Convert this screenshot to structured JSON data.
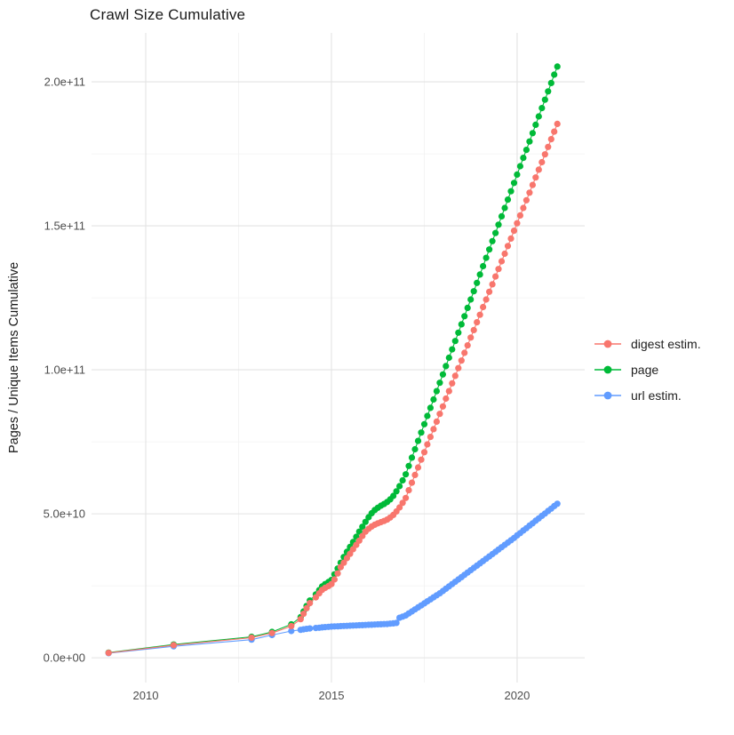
{
  "chart_data": {
    "type": "line",
    "title": "Crawl Size Cumulative",
    "xlabel": "",
    "ylabel": "Pages / Unique Items Cumulative",
    "legend_position": "right",
    "grid": true,
    "value_unit": "billions (1e9 items); axis labels shown in scientific notation",
    "x_axis": {
      "ticks": [
        {
          "label": "2010",
          "value": 2010
        },
        {
          "label": "2015",
          "value": 2015
        },
        {
          "label": "2020",
          "value": 2020
        }
      ],
      "minor_ticks": [
        2012.5,
        2017.5
      ],
      "domain": [
        2008.54,
        2021.82
      ]
    },
    "y_axis": {
      "ticks": [
        {
          "label": "0.0e+00",
          "value": 0
        },
        {
          "label": "5.0e+10",
          "value": 50
        },
        {
          "label": "1.0e+11",
          "value": 100
        },
        {
          "label": "1.5e+11",
          "value": 150
        },
        {
          "label": "2.0e+11",
          "value": 200
        }
      ],
      "minor_ticks": [
        25,
        75,
        125,
        175
      ],
      "domain": [
        -8.6,
        217.0
      ]
    },
    "x": [
      2009.0,
      2010.75,
      2012.85,
      2013.4,
      2013.92,
      2014.17,
      2014.25,
      2014.33,
      2014.42,
      2014.58,
      2014.67,
      2014.75,
      2014.83,
      2014.92,
      2015.0,
      2015.083,
      2015.167,
      2015.25,
      2015.333,
      2015.417,
      2015.5,
      2015.583,
      2015.667,
      2015.75,
      2015.833,
      2015.917,
      2016.0,
      2016.083,
      2016.167,
      2016.25,
      2016.333,
      2016.417,
      2016.5,
      2016.583,
      2016.667,
      2016.75,
      2016.833,
      2016.917,
      2017.0,
      2017.083,
      2017.167,
      2017.25,
      2017.333,
      2017.417,
      2017.5,
      2017.583,
      2017.667,
      2017.75,
      2017.833,
      2017.917,
      2018.0,
      2018.083,
      2018.167,
      2018.25,
      2018.333,
      2018.417,
      2018.5,
      2018.583,
      2018.667,
      2018.75,
      2018.833,
      2018.917,
      2019.0,
      2019.083,
      2019.167,
      2019.25,
      2019.333,
      2019.417,
      2019.5,
      2019.583,
      2019.667,
      2019.75,
      2019.833,
      2019.917,
      2020.0,
      2020.083,
      2020.167,
      2020.25,
      2020.333,
      2020.417,
      2020.5,
      2020.583,
      2020.667,
      2020.75,
      2020.833,
      2020.917,
      2021.0,
      2021.083
    ],
    "series": [
      {
        "name": "digest estim.",
        "color": "#F8766D",
        "values": [
          1.7,
          4.4,
          7.0,
          8.6,
          11.0,
          13.4,
          15.3,
          17.2,
          19.0,
          21.0,
          22.4,
          23.6,
          24.3,
          24.9,
          25.6,
          27.2,
          29.3,
          31.5,
          33.0,
          34.6,
          36.1,
          37.7,
          39.2,
          40.7,
          42.3,
          43.8,
          44.8,
          45.6,
          46.2,
          46.7,
          47.1,
          47.5,
          48.0,
          48.7,
          49.6,
          50.8,
          52.2,
          53.8,
          55.5,
          58.2,
          60.8,
          63.5,
          66.1,
          68.8,
          71.4,
          74.1,
          76.7,
          79.4,
          82.0,
          84.7,
          87.3,
          90.0,
          92.6,
          95.3,
          97.9,
          100.6,
          103.2,
          105.9,
          108.5,
          111.2,
          113.8,
          116.5,
          119.1,
          121.8,
          124.4,
          127.1,
          129.7,
          132.4,
          135.0,
          137.7,
          140.3,
          143.0,
          145.6,
          148.3,
          150.9,
          153.6,
          156.2,
          158.9,
          161.5,
          164.2,
          166.8,
          169.5,
          172.1,
          174.8,
          177.4,
          180.1,
          182.7,
          185.4
        ]
      },
      {
        "name": "page",
        "color": "#00BA38",
        "values": [
          1.8,
          4.6,
          7.3,
          9.0,
          11.6,
          14.1,
          16.1,
          18.0,
          19.9,
          22.0,
          23.5,
          24.8,
          25.6,
          26.3,
          27.0,
          29.0,
          31.0,
          33.0,
          35.0,
          36.8,
          38.5,
          40.2,
          42.0,
          43.8,
          45.5,
          47.2,
          48.8,
          50.2,
          51.3,
          52.1,
          52.8,
          53.4,
          54.1,
          55.0,
          56.2,
          57.8,
          59.6,
          61.6,
          63.7,
          66.6,
          69.5,
          72.4,
          75.3,
          78.2,
          81.1,
          84.0,
          86.8,
          89.7,
          92.6,
          95.5,
          98.4,
          101.3,
          104.2,
          107.1,
          110.0,
          112.9,
          115.8,
          118.6,
          121.5,
          124.4,
          127.3,
          130.2,
          133.1,
          136.0,
          138.9,
          141.8,
          144.7,
          147.5,
          150.4,
          153.3,
          156.2,
          159.1,
          162.0,
          164.9,
          167.8,
          170.7,
          173.6,
          176.4,
          179.3,
          182.2,
          185.1,
          188.0,
          190.9,
          193.8,
          196.7,
          199.6,
          202.5,
          205.3
        ]
      },
      {
        "name": "url estim.",
        "color": "#619CFF",
        "values": [
          1.6,
          4.0,
          6.3,
          7.9,
          9.3,
          9.7,
          9.9,
          10.05,
          10.2,
          10.35,
          10.45,
          10.55,
          10.65,
          10.75,
          10.85,
          10.9,
          10.95,
          11.0,
          11.05,
          11.1,
          11.15,
          11.2,
          11.25,
          11.3,
          11.35,
          11.4,
          11.45,
          11.5,
          11.55,
          11.6,
          11.65,
          11.7,
          11.75,
          11.85,
          11.95,
          12.1,
          13.9,
          14.3,
          14.7,
          15.4,
          16.1,
          16.8,
          17.5,
          18.2,
          18.9,
          19.6,
          20.3,
          21.0,
          21.7,
          22.4,
          23.2,
          24.0,
          24.8,
          25.6,
          26.4,
          27.2,
          28.0,
          28.8,
          29.6,
          30.4,
          31.2,
          32.0,
          32.8,
          33.6,
          34.4,
          35.2,
          36.0,
          36.8,
          37.6,
          38.4,
          39.2,
          40.0,
          40.8,
          41.6,
          42.5,
          43.3,
          44.2,
          45.0,
          45.9,
          46.7,
          47.6,
          48.4,
          49.3,
          50.1,
          51.0,
          51.8,
          52.7,
          53.5
        ]
      }
    ]
  }
}
